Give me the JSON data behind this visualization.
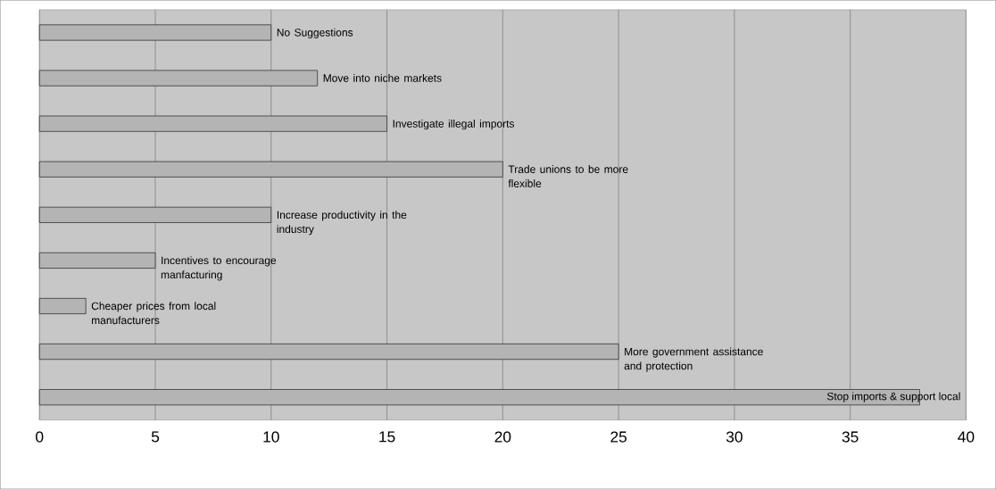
{
  "chart_data": {
    "type": "bar",
    "orientation": "horizontal",
    "categories": [
      "No Suggestions",
      "Move into niche markets",
      "Investigate illegal imports",
      "Trade unions to be more flexible",
      "Increase productivity in the industry",
      "Incentives to encourage manfacturing",
      "Cheaper prices from local manufacturers",
      "More government assistance and protection",
      "Stop imports & support local"
    ],
    "values": [
      10,
      12,
      15,
      20,
      10,
      5,
      2,
      25,
      38
    ],
    "color": "#b4b4b4",
    "xlim": [
      0,
      40
    ],
    "xticks": [
      0,
      5,
      10,
      15,
      20,
      25,
      30,
      35,
      40
    ],
    "grid": "x"
  }
}
